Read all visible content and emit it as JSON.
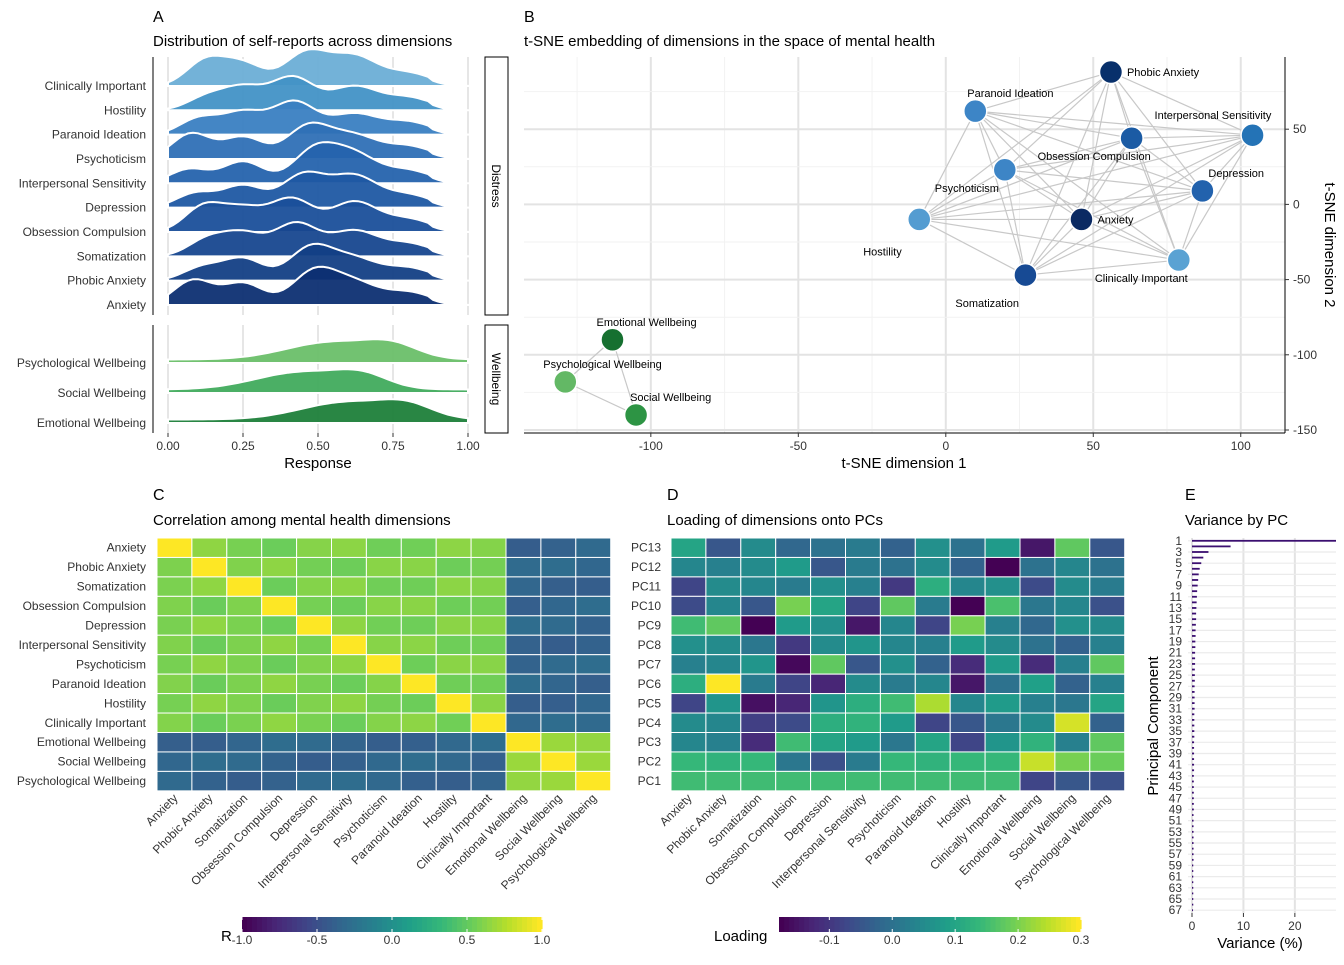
{
  "panel_labels": {
    "a": "A",
    "b": "B",
    "c": "C",
    "d": "D",
    "e": "E"
  },
  "dimensions": [
    "Anxiety",
    "Phobic Anxiety",
    "Somatization",
    "Obsession Compulsion",
    "Depression",
    "Interpersonal Sensitivity",
    "Psychoticism",
    "Paranoid Ideation",
    "Hostility",
    "Clinically Important",
    "Emotional Wellbeing",
    "Social Wellbeing",
    "Psychological Wellbeing"
  ],
  "chart_data": [
    {
      "type": "ridgeline",
      "title": "Distribution of self-reports across dimensions",
      "xlabel": "Response",
      "x_ticks": [
        "0.00",
        "0.25",
        "0.50",
        "0.75",
        "1.00"
      ],
      "xlim": [
        0,
        1
      ],
      "facets": [
        {
          "name": "Distress",
          "rows": [
            "Clinically Important",
            "Hostility",
            "Paranoid Ideation",
            "Psychoticism",
            "Interpersonal Sensitivity",
            "Depression",
            "Obsession Compulsion",
            "Somatization",
            "Phobic Anxiety",
            "Anxiety"
          ],
          "colors": [
            "#6baed6",
            "#4292c6",
            "#3a7fc2",
            "#2f70b6",
            "#2563ad",
            "#1f58a3",
            "#1a4f9a",
            "#17478f",
            "#133f85",
            "#0d2f72"
          ]
        },
        {
          "name": "Wellbeing",
          "rows": [
            "Psychological Wellbeing",
            "Social Wellbeing",
            "Emotional Wellbeing"
          ],
          "colors": [
            "#6abf69",
            "#41ab5d",
            "#1e7f3a"
          ]
        }
      ]
    },
    {
      "type": "scatter",
      "title": "t-SNE embedding of dimensions in the space of mental health",
      "xlabel": "t-SNE dimension 1",
      "ylabel": "t-SNE dimension 2",
      "xlim": [
        -143,
        115
      ],
      "ylim": [
        -152,
        98
      ],
      "x_ticks": [
        "-100",
        "-50",
        "0",
        "50",
        "100"
      ],
      "y_ticks": [
        "50",
        "0",
        "-50",
        "-100",
        "-150"
      ],
      "points": [
        {
          "label": "Phobic Anxiety",
          "x": 56,
          "y": 88,
          "color": "#08306b"
        },
        {
          "label": "Paranoid Ideation",
          "x": 10,
          "y": 62,
          "color": "#3d85c6"
        },
        {
          "label": "Interpersonal Sensitivity",
          "x": 104,
          "y": 46,
          "color": "#2473b6"
        },
        {
          "label": "Obsession Compulsion",
          "x": 63,
          "y": 44,
          "color": "#1b5ba4"
        },
        {
          "label": "Psychoticism",
          "x": 20,
          "y": 23,
          "color": "#3d85c6"
        },
        {
          "label": "Depression",
          "x": 87,
          "y": 9,
          "color": "#2262ad"
        },
        {
          "label": "Anxiety",
          "x": 46,
          "y": -10,
          "color": "#0b2a63"
        },
        {
          "label": "Hostility",
          "x": -9,
          "y": -10,
          "color": "#549cd1"
        },
        {
          "label": "Clinically Important",
          "x": 79,
          "y": -37,
          "color": "#5aa2d3"
        },
        {
          "label": "Somatization",
          "x": 27,
          "y": -47,
          "color": "#174a94"
        },
        {
          "label": "Emotional Wellbeing",
          "x": -113,
          "y": -90,
          "color": "#167030"
        },
        {
          "label": "Psychological Wellbeing",
          "x": -129,
          "y": -118,
          "color": "#63b865"
        },
        {
          "label": "Social Wellbeing",
          "x": -105,
          "y": -140,
          "color": "#2d9444"
        }
      ]
    },
    {
      "type": "heatmap",
      "title": "Correlation among mental health dimensions",
      "legend_title": "R",
      "legend_ticks": [
        "-1.0",
        "-0.5",
        "0.0",
        "0.5",
        "1.0"
      ],
      "range": [
        -1,
        1
      ],
      "distress_within": 0.6,
      "wellbeing_within": 0.72,
      "cross": -0.35
    },
    {
      "type": "heatmap",
      "title": "Loading of dimensions onto PCs",
      "legend_title": "Loading",
      "legend_ticks": [
        "-0.1",
        "0.0",
        "0.1",
        "0.2",
        "0.3"
      ],
      "range": [
        -0.18,
        0.3
      ],
      "rows": [
        "PC13",
        "PC12",
        "PC11",
        "PC10",
        "PC9",
        "PC8",
        "PC7",
        "PC6",
        "PC5",
        "PC4",
        "PC3",
        "PC2",
        "PC1"
      ],
      "values": [
        [
          0.1,
          -0.05,
          0.05,
          -0.02,
          0.0,
          0.02,
          -0.03,
          0.06,
          0.0,
          0.08,
          -0.15,
          0.18,
          -0.05
        ],
        [
          0.04,
          0.03,
          0.05,
          0.08,
          -0.05,
          0.02,
          0.0,
          0.05,
          -0.03,
          -0.18,
          0.0,
          0.04,
          0.0
        ],
        [
          -0.08,
          0.05,
          0.04,
          0.02,
          0.06,
          0.03,
          -0.1,
          0.12,
          0.04,
          0.06,
          -0.07,
          0.05,
          0.02
        ],
        [
          -0.07,
          0.04,
          -0.05,
          0.2,
          0.1,
          -0.08,
          0.18,
          0.02,
          -0.2,
          0.16,
          0.01,
          0.04,
          -0.06
        ],
        [
          0.15,
          0.18,
          -0.18,
          0.08,
          0.06,
          -0.15,
          0.04,
          -0.08,
          0.2,
          0.03,
          -0.02,
          0.06,
          0.05
        ],
        [
          0.06,
          0.05,
          0.01,
          -0.1,
          0.05,
          0.07,
          0.04,
          0.03,
          0.08,
          0.05,
          0.0,
          -0.03,
          0.03
        ],
        [
          0.03,
          0.04,
          0.07,
          -0.17,
          0.18,
          -0.05,
          0.06,
          -0.03,
          -0.12,
          0.08,
          -0.12,
          0.03,
          0.18
        ],
        [
          0.12,
          0.3,
          0.02,
          -0.08,
          -0.13,
          0.05,
          0.02,
          0.04,
          -0.15,
          0.0,
          0.09,
          -0.03,
          0.03
        ],
        [
          -0.08,
          0.07,
          -0.16,
          -0.13,
          0.07,
          0.12,
          0.15,
          0.24,
          0.04,
          0.08,
          0.03,
          0.01,
          0.1
        ],
        [
          0.05,
          0.04,
          -0.09,
          -0.07,
          0.12,
          0.13,
          0.08,
          -0.08,
          -0.05,
          0.01,
          0.05,
          0.27,
          -0.03
        ],
        [
          0.04,
          0.03,
          -0.12,
          0.15,
          0.1,
          0.08,
          0.01,
          0.1,
          -0.08,
          0.07,
          0.13,
          0.03,
          0.18
        ],
        [
          0.14,
          0.13,
          0.14,
          0.01,
          -0.06,
          0.02,
          0.14,
          0.13,
          0.14,
          0.14,
          0.26,
          0.2,
          0.19
        ],
        [
          0.15,
          0.15,
          0.15,
          0.15,
          0.15,
          0.15,
          0.15,
          0.15,
          0.15,
          0.15,
          -0.08,
          -0.05,
          -0.06
        ]
      ]
    },
    {
      "type": "bar",
      "orientation": "horizontal",
      "title": "Variance by PC",
      "xlabel": "Variance (%)",
      "ylabel": "Principal Component",
      "x_ticks": [
        "0",
        "10",
        "20"
      ],
      "xlim": [
        0,
        28
      ],
      "y_ticks": [
        "1",
        "3",
        "5",
        "7",
        "9",
        "11",
        "13",
        "15",
        "17",
        "19",
        "21",
        "23",
        "25",
        "27",
        "29",
        "31",
        "33",
        "35",
        "37",
        "39",
        "41",
        "43",
        "45",
        "47",
        "49",
        "51",
        "53",
        "55",
        "57",
        "59",
        "61",
        "63",
        "65",
        "67"
      ],
      "values": [
        28,
        7.5,
        3.2,
        2.2,
        1.8,
        1.5,
        1.3,
        1.2,
        1.1,
        1.0,
        0.95,
        0.9,
        0.85,
        0.8,
        0.8,
        0.75,
        0.7,
        0.7,
        0.65,
        0.65,
        0.6,
        0.6,
        0.6,
        0.55,
        0.55,
        0.55,
        0.5,
        0.5,
        0.5,
        0.5,
        0.5,
        0.45,
        0.45,
        0.45,
        0.45,
        0.45,
        0.4,
        0.4,
        0.4,
        0.4,
        0.4,
        0.4,
        0.35,
        0.35,
        0.35,
        0.35,
        0.35,
        0.35,
        0.35,
        0.3,
        0.3,
        0.3,
        0.3,
        0.3,
        0.3,
        0.3,
        0.3,
        0.3,
        0.25,
        0.25,
        0.25,
        0.25,
        0.25,
        0.25,
        0.25,
        0.25,
        0.2
      ]
    }
  ]
}
